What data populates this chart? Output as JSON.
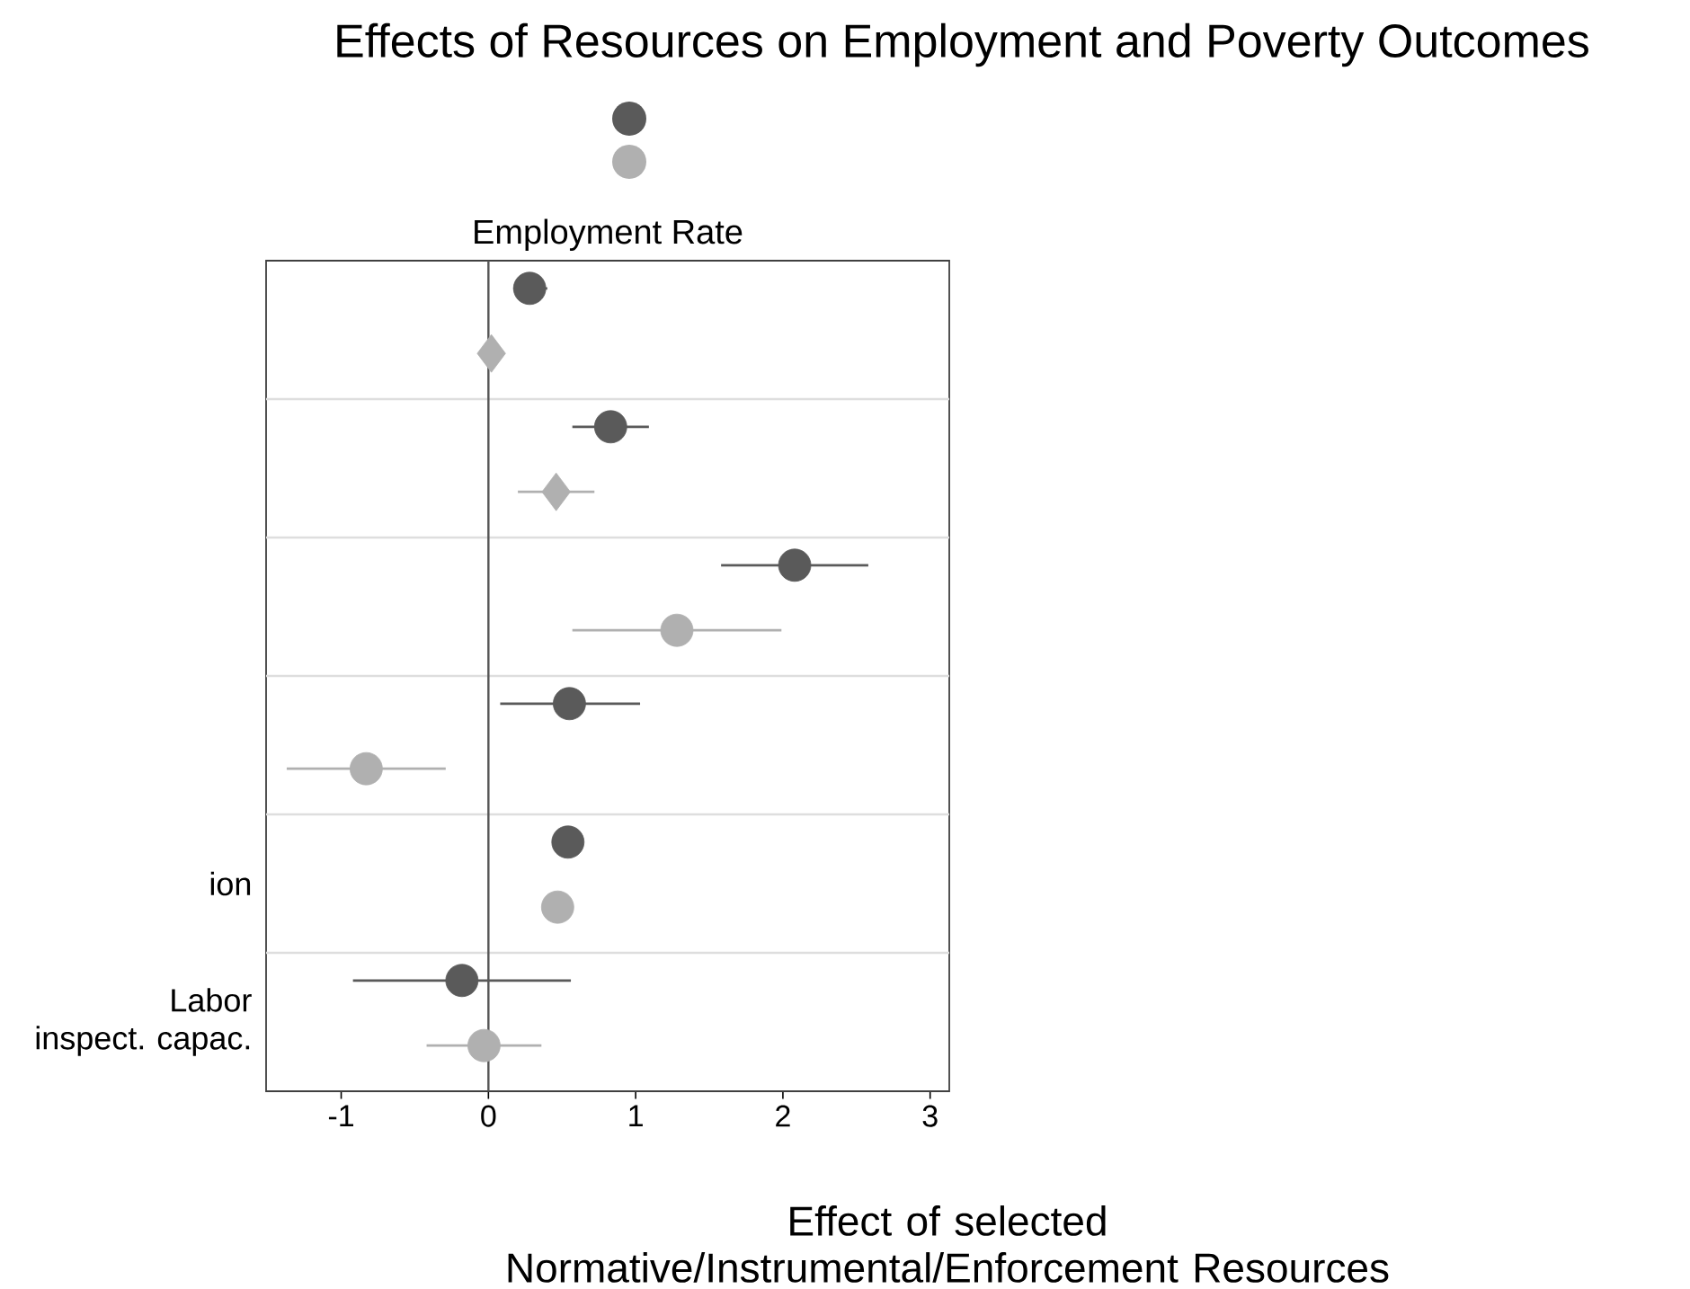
{
  "chart_data": {
    "type": "scatter",
    "orientation": "horizontal",
    "title": "Effects of Resources on Employment and Poverty Outcomes",
    "subtitle": "Employment Rate",
    "xlabel": "Effect of selected\nNormative/Instrumental/Enforcement Resources",
    "categories": [
      null,
      null,
      null,
      null,
      "ion",
      "Labor\ninspect. capac."
    ],
    "series": [
      {
        "color": "#5a5a5a",
        "marker": "circle",
        "values": [
          0.28,
          0.83,
          2.08,
          0.55,
          0.54,
          -0.18
        ],
        "errors": [
          [
            0.17,
            0.4
          ],
          [
            0.57,
            1.09
          ],
          [
            1.58,
            2.58
          ],
          [
            0.08,
            1.03
          ],
          null,
          [
            -0.92,
            0.56
          ]
        ]
      },
      {
        "color": "#b0b0b0",
        "marker": "circle",
        "values": [
          null,
          null,
          1.28,
          -0.83,
          0.47,
          -0.03
        ],
        "errors": [
          null,
          null,
          [
            0.57,
            1.99
          ],
          [
            -1.37,
            -0.29
          ],
          [
            0.39,
            0.56
          ],
          [
            -0.42,
            0.36
          ]
        ]
      },
      {
        "color": "#b0b0b0",
        "marker": "diamond",
        "values": [
          0.02,
          0.46,
          null,
          null,
          null,
          null
        ],
        "errors": [
          null,
          [
            0.2,
            0.72
          ],
          null,
          null,
          null,
          null
        ]
      }
    ],
    "xlim": [
      -1.51,
      3.13
    ],
    "xticks": [
      -1,
      0,
      1,
      2,
      3
    ],
    "ref_lines": [
      {
        "axis": "x",
        "value": 0,
        "color": "#555555"
      }
    ],
    "grid": "y"
  }
}
